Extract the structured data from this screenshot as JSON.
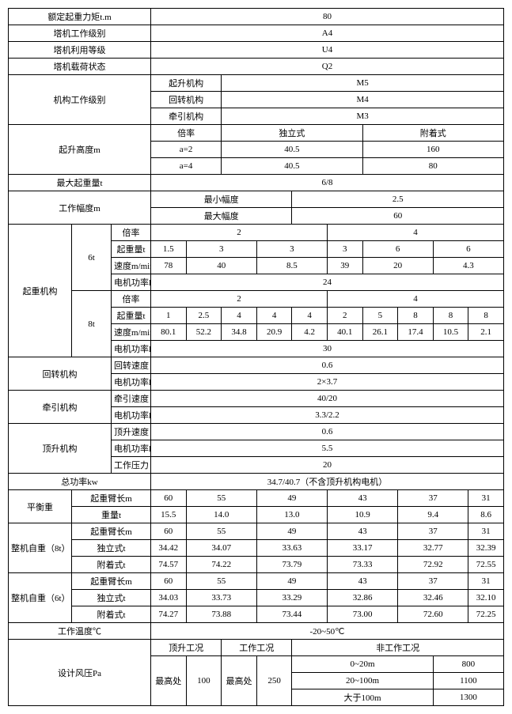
{
  "r1": {
    "label": "额定起重力矩t.m",
    "val": "80"
  },
  "r2": {
    "label": "塔机工作级别",
    "val": "A4"
  },
  "r3": {
    "label": "塔机利用等级",
    "val": "U4"
  },
  "r4": {
    "label": "塔机载荷状态",
    "val": "Q2"
  },
  "r5": {
    "label": "机构工作级别",
    "a": "起升机构",
    "av": "M5",
    "b": "回转机构",
    "bv": "M4",
    "c": "牵引机构",
    "cv": "M3"
  },
  "r6": {
    "label": "起升高度m",
    "bl": "倍率",
    "ind": "独立式",
    "att": "附着式",
    "a2": "a=2",
    "a2i": "40.5",
    "a2a": "160",
    "a4": "a=4",
    "a4i": "40.5",
    "a4a": "80"
  },
  "r7": {
    "label": "最大起重量t",
    "val": "6/8"
  },
  "r8": {
    "label": "工作幅度m",
    "min": "最小幅度",
    "minv": "2.5",
    "max": "最大幅度",
    "maxv": "60"
  },
  "qz": {
    "label": "起重机构"
  },
  "t6": {
    "label": "6t",
    "bl": "倍率",
    "m2": "2",
    "m4": "4",
    "qz": "起重量t",
    "qzv": [
      "1.5",
      "3",
      "3",
      "3",
      "6",
      "6"
    ],
    "sp": "速度m/min",
    "spv": [
      "78",
      "40",
      "8.5",
      "39",
      "20",
      "4.3"
    ],
    "pw": "电机功率kw",
    "pwv": "24"
  },
  "t8": {
    "label": "8t",
    "bl": "倍率",
    "m2": "2",
    "m4": "4",
    "qz": "起重量t",
    "qzv": [
      "1",
      "2.5",
      "4",
      "4",
      "4",
      "2",
      "5",
      "8",
      "8",
      "8"
    ],
    "sp": "速度m/min",
    "spv": [
      "80.1",
      "52.2",
      "34.8",
      "20.9",
      "4.2",
      "40.1",
      "26.1",
      "17.4",
      "10.5",
      "2.1"
    ],
    "pw": "电机功率kw",
    "pwv": "30"
  },
  "hz": {
    "label": "回转机构",
    "sp": "回转速度",
    "spv": "0.6",
    "pw": "电机功率kw",
    "pwv": "2×3.7"
  },
  "qy": {
    "label": "牵引机构",
    "sp": "牵引速度",
    "spv": "40/20",
    "pw": "电机功率kw",
    "pwv": "3.3/2.2"
  },
  "ds": {
    "label": "顶升机构",
    "sp": "顶升速度",
    "spv": "0.6",
    "pw": "电机功率kw",
    "pwv": "5.5",
    "yl": "工作压力",
    "ylv": "20"
  },
  "zg": {
    "label": "总功率kw",
    "val": "34.7/40.7（不含顶升机构电机）"
  },
  "ph": {
    "label": "平衡重",
    "bc": "起重臂长m",
    "bcv": [
      "60",
      "55",
      "49",
      "43",
      "37",
      "31"
    ],
    "zl": "重量t",
    "zlv": [
      "15.5",
      "14.0",
      "13.0",
      "10.9",
      "9.4",
      "8.6"
    ]
  },
  "zj8": {
    "label": "整机自重（8t）",
    "bc": "起重臂长m",
    "bcv": [
      "60",
      "55",
      "49",
      "43",
      "37",
      "31"
    ],
    "dl": "独立式t",
    "dlv": [
      "34.42",
      "34.07",
      "33.63",
      "33.17",
      "32.77",
      "32.39"
    ],
    "fz": "附着式t",
    "fzv": [
      "74.57",
      "74.22",
      "73.79",
      "73.33",
      "72.92",
      "72.55"
    ]
  },
  "zj6": {
    "label": "整机自重（6t）",
    "bc": "起重臂长m",
    "bcv": [
      "60",
      "55",
      "49",
      "43",
      "37",
      "31"
    ],
    "dl": "独立式t",
    "dlv": [
      "34.03",
      "33.73",
      "33.29",
      "32.86",
      "32.46",
      "32.10"
    ],
    "fz": "附着式t",
    "fzv": [
      "74.27",
      "73.88",
      "73.44",
      "73.00",
      "72.60",
      "72.25"
    ]
  },
  "wd": {
    "label": "工作温度℃",
    "val": "-20~50℃"
  },
  "fy": {
    "label": "设计风压Pa",
    "ds": "顶升工况",
    "gz": "工作工况",
    "fg": "非工作工况",
    "zg": "最高处",
    "zg1": "100",
    "zg2": "最高处",
    "zg2v": "250",
    "r": [
      [
        "0~20m",
        "800"
      ],
      [
        "20~100m",
        "1100"
      ],
      [
        "大于100m",
        "1300"
      ]
    ]
  }
}
